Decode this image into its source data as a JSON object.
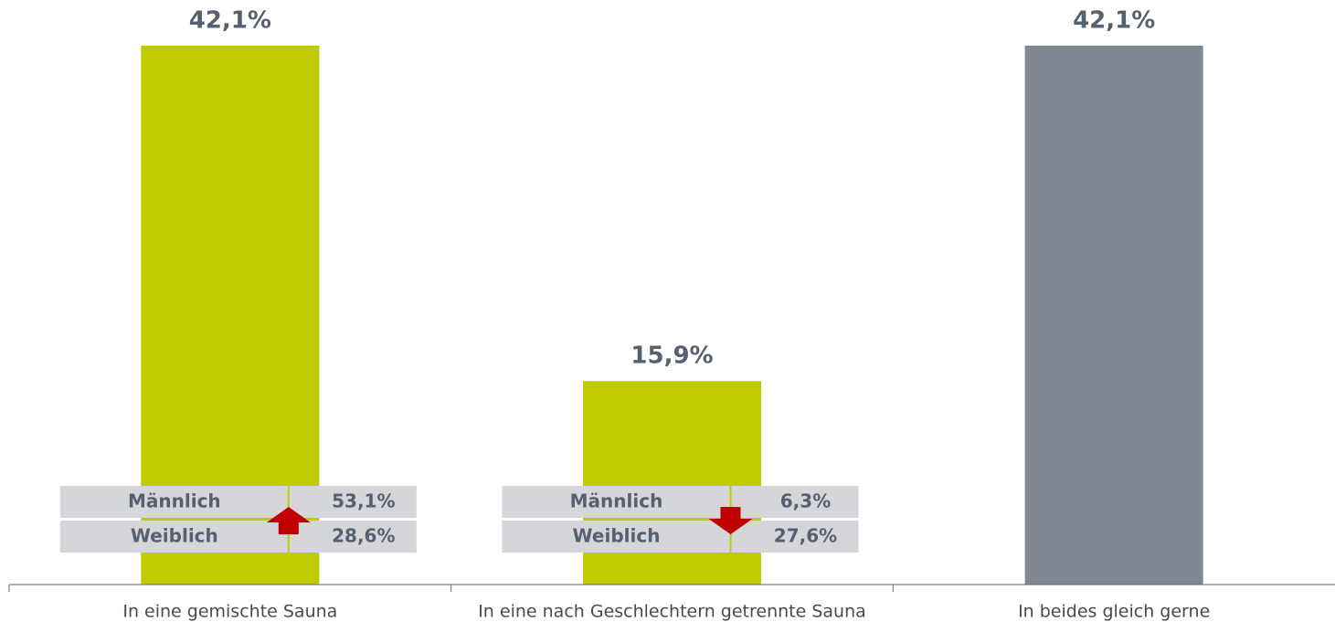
{
  "chart_data": {
    "type": "bar",
    "categories": [
      "In eine gemischte Sauna",
      "In eine nach Geschlechtern getrennte Sauna",
      "In beides gleich gerne"
    ],
    "values": [
      42.1,
      15.9,
      42.1
    ],
    "value_labels": [
      "42,1%",
      "15,9%",
      "42,1%"
    ],
    "colors": [
      "#c0cc00",
      "#c0cc00",
      "#7f8790"
    ],
    "ylim": [
      0,
      42.1
    ],
    "breakdowns": [
      {
        "trend": "up",
        "rows": [
          {
            "label": "Männlich",
            "value": 53.1,
            "value_label": "53,1%"
          },
          {
            "label": "Weiblich",
            "value": 28.6,
            "value_label": "28,6%"
          }
        ]
      },
      {
        "trend": "down",
        "rows": [
          {
            "label": "Männlich",
            "value": 6.3,
            "value_label": "6,3%"
          },
          {
            "label": "Weiblich",
            "value": 27.6,
            "value_label": "27,6%"
          }
        ]
      },
      null
    ]
  }
}
